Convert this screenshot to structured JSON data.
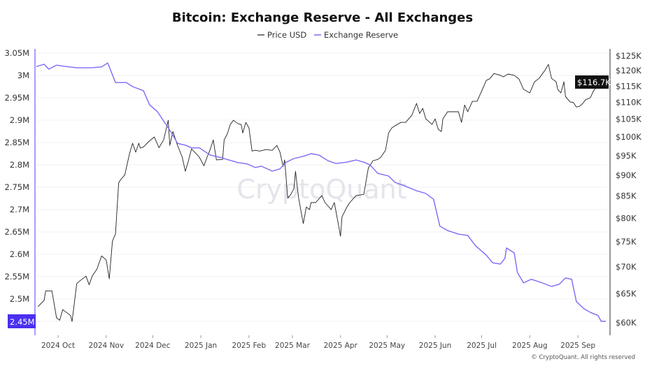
{
  "chart_data": {
    "type": "line",
    "title": "Bitcoin: Exchange Reserve - All Exchanges",
    "watermark": "CryptoQuant",
    "footer": "© CryptoQuant. All rights reserved",
    "x_unit": "days since 2024-09-17",
    "x_start_date": "2024-09-17",
    "x_range": [
      0,
      367
    ],
    "legend_position": "top-center",
    "grid": true,
    "x_ticks": [
      {
        "label": "2024 Oct",
        "date": "2024-10-01"
      },
      {
        "label": "2024 Nov",
        "date": "2024-11-01"
      },
      {
        "label": "2024 Dec",
        "date": "2024-12-01"
      },
      {
        "label": "2025 Jan",
        "date": "2025-01-01"
      },
      {
        "label": "2025 Feb",
        "date": "2025-02-01"
      },
      {
        "label": "2025 Mar",
        "date": "2025-03-01"
      },
      {
        "label": "2025 Apr",
        "date": "2025-04-01"
      },
      {
        "label": "2025 May",
        "date": "2025-05-01"
      },
      {
        "label": "2025 Jun",
        "date": "2025-06-01"
      },
      {
        "label": "2025 Jul",
        "date": "2025-07-01"
      },
      {
        "label": "2025 Aug",
        "date": "2025-08-01"
      },
      {
        "label": "2025 Sep",
        "date": "2025-09-01"
      }
    ],
    "y_left": {
      "label": "Exchange Reserve",
      "range": [
        2.45,
        3.05
      ],
      "unit": "M",
      "ticks": [
        "3.05M",
        "3M",
        "2.95M",
        "2.9M",
        "2.85M",
        "2.8M",
        "2.75M",
        "2.7M",
        "2.65M",
        "2.6M",
        "2.55M",
        "2.5M",
        "2.45M"
      ],
      "tick_values": [
        3.05,
        3.0,
        2.95,
        2.9,
        2.85,
        2.8,
        2.75,
        2.7,
        2.65,
        2.6,
        2.55,
        2.5,
        2.45
      ],
      "current_label": "2.45M"
    },
    "y_right": {
      "label": "Price USD",
      "scale": "log",
      "range": [
        60,
        125
      ],
      "unit": "K USD",
      "ticks": [
        "$125K",
        "$120K",
        "$115K",
        "$110K",
        "$105K",
        "$100K",
        "$95K",
        "$90K",
        "$85K",
        "$80K",
        "$75K",
        "$70K",
        "$65K",
        "$60K"
      ],
      "tick_values": [
        125,
        120,
        115,
        110,
        105,
        100,
        95,
        90,
        85,
        80,
        75,
        70,
        65,
        60
      ],
      "current_label": "$116.7K"
    },
    "series": [
      {
        "name": "Price USD",
        "color": "#222222",
        "axis": "right",
        "points": [
          [
            1,
            62.7
          ],
          [
            5,
            63.8
          ],
          [
            6,
            65.5
          ],
          [
            10,
            65.5
          ],
          [
            13,
            60.8
          ],
          [
            15,
            60.4
          ],
          [
            17,
            62.2
          ],
          [
            20,
            61.6
          ],
          [
            22,
            61.2
          ],
          [
            23,
            60.2
          ],
          [
            26,
            66.8
          ],
          [
            28,
            67.3
          ],
          [
            32,
            68.2
          ],
          [
            34,
            66.6
          ],
          [
            36,
            68.2
          ],
          [
            39,
            69.5
          ],
          [
            42,
            72.1
          ],
          [
            45,
            71.3
          ],
          [
            47,
            67.7
          ],
          [
            49,
            75.1
          ],
          [
            51,
            76.6
          ],
          [
            53,
            88.1
          ],
          [
            54,
            88.8
          ],
          [
            57,
            90.1
          ],
          [
            60,
            95.5
          ],
          [
            62,
            98.3
          ],
          [
            64,
            95.9
          ],
          [
            66,
            98.3
          ],
          [
            67,
            97.0
          ],
          [
            69,
            97.3
          ],
          [
            72,
            98.6
          ],
          [
            76,
            100.0
          ],
          [
            79,
            97.1
          ],
          [
            82,
            99.2
          ],
          [
            85,
            104.7
          ],
          [
            86,
            97.7
          ],
          [
            88,
            101.5
          ],
          [
            91,
            97.7
          ],
          [
            94,
            94.6
          ],
          [
            96,
            91.0
          ],
          [
            98,
            93.7
          ],
          [
            100,
            96.8
          ],
          [
            105,
            94.6
          ],
          [
            108,
            92.4
          ],
          [
            110,
            94.6
          ],
          [
            112,
            96.6
          ],
          [
            114,
            99.2
          ],
          [
            116,
            93.9
          ],
          [
            120,
            94.0
          ],
          [
            121,
            99.2
          ],
          [
            123,
            100.8
          ],
          [
            125,
            103.5
          ],
          [
            127,
            104.7
          ],
          [
            130,
            103.7
          ],
          [
            132,
            103.5
          ],
          [
            133,
            101.1
          ],
          [
            135,
            104.1
          ],
          [
            137,
            102.5
          ],
          [
            139,
            96.2
          ],
          [
            141,
            96.4
          ],
          [
            144,
            96.2
          ],
          [
            148,
            96.6
          ],
          [
            152,
            96.4
          ],
          [
            155,
            97.7
          ],
          [
            157,
            95.9
          ],
          [
            159,
            92.2
          ],
          [
            160,
            93.9
          ],
          [
            162,
            84.5
          ],
          [
            164,
            85.4
          ],
          [
            166,
            86.8
          ],
          [
            167,
            91.0
          ],
          [
            169,
            84.6
          ],
          [
            172,
            78.8
          ],
          [
            174,
            82.5
          ],
          [
            176,
            81.9
          ],
          [
            177,
            83.5
          ],
          [
            180,
            83.5
          ],
          [
            184,
            85.1
          ],
          [
            186,
            83.5
          ],
          [
            188,
            82.7
          ],
          [
            190,
            81.9
          ],
          [
            192,
            83.5
          ],
          [
            195,
            78.0
          ],
          [
            196,
            76.1
          ],
          [
            197,
            80.3
          ],
          [
            200,
            82.4
          ],
          [
            202,
            83.5
          ],
          [
            206,
            85.1
          ],
          [
            211,
            85.4
          ],
          [
            214,
            91.9
          ],
          [
            217,
            93.7
          ],
          [
            220,
            94.0
          ],
          [
            222,
            94.6
          ],
          [
            225,
            96.4
          ],
          [
            227,
            101.1
          ],
          [
            229,
            102.5
          ],
          [
            231,
            103.1
          ],
          [
            235,
            104.1
          ],
          [
            238,
            104.1
          ],
          [
            242,
            106.2
          ],
          [
            245,
            109.7
          ],
          [
            247,
            106.7
          ],
          [
            249,
            108.2
          ],
          [
            251,
            105.1
          ],
          [
            255,
            103.5
          ],
          [
            257,
            105.1
          ],
          [
            259,
            102.1
          ],
          [
            261,
            101.5
          ],
          [
            262,
            105.1
          ],
          [
            265,
            107.2
          ],
          [
            268,
            107.2
          ],
          [
            272,
            107.2
          ],
          [
            274,
            104.1
          ],
          [
            276,
            109.2
          ],
          [
            278,
            107.2
          ],
          [
            281,
            110.3
          ],
          [
            284,
            110.3
          ],
          [
            287,
            113.5
          ],
          [
            290,
            116.9
          ],
          [
            292,
            117.3
          ],
          [
            295,
            119.1
          ],
          [
            299,
            118.5
          ],
          [
            301,
            118.0
          ],
          [
            304,
            118.9
          ],
          [
            308,
            118.5
          ],
          [
            311,
            117.3
          ],
          [
            314,
            114.0
          ],
          [
            318,
            112.9
          ],
          [
            321,
            116.4
          ],
          [
            324,
            117.5
          ],
          [
            328,
            120.3
          ],
          [
            330,
            122.1
          ],
          [
            332,
            117.5
          ],
          [
            335,
            116.4
          ],
          [
            336,
            114.0
          ],
          [
            338,
            112.9
          ],
          [
            340,
            116.4
          ],
          [
            341,
            111.8
          ],
          [
            344,
            110.1
          ],
          [
            346,
            110.0
          ],
          [
            348,
            108.6
          ],
          [
            350,
            108.8
          ],
          [
            352,
            109.6
          ],
          [
            354,
            110.8
          ],
          [
            357,
            111.4
          ],
          [
            359,
            113.5
          ],
          [
            362,
            115.3
          ],
          [
            365,
            115.8
          ],
          [
            367,
            116.7
          ]
        ]
      },
      {
        "name": "Exchange Reserve",
        "color": "#7b6cf6",
        "axis": "left",
        "points": [
          [
            0,
            3.02
          ],
          [
            5,
            3.025
          ],
          [
            8,
            3.014
          ],
          [
            13,
            3.023
          ],
          [
            19,
            3.02
          ],
          [
            26,
            3.017
          ],
          [
            35,
            3.017
          ],
          [
            42,
            3.019
          ],
          [
            46,
            3.028
          ],
          [
            51,
            2.984
          ],
          [
            58,
            2.984
          ],
          [
            62,
            2.975
          ],
          [
            69,
            2.966
          ],
          [
            73,
            2.934
          ],
          [
            78,
            2.919
          ],
          [
            82,
            2.898
          ],
          [
            87,
            2.872
          ],
          [
            91,
            2.848
          ],
          [
            96,
            2.844
          ],
          [
            100,
            2.838
          ],
          [
            105,
            2.838
          ],
          [
            112,
            2.822
          ],
          [
            118,
            2.817
          ],
          [
            123,
            2.812
          ],
          [
            130,
            2.805
          ],
          [
            136,
            2.802
          ],
          [
            141,
            2.794
          ],
          [
            145,
            2.797
          ],
          [
            152,
            2.786
          ],
          [
            157,
            2.791
          ],
          [
            161,
            2.806
          ],
          [
            166,
            2.814
          ],
          [
            173,
            2.82
          ],
          [
            177,
            2.825
          ],
          [
            182,
            2.822
          ],
          [
            188,
            2.809
          ],
          [
            193,
            2.803
          ],
          [
            200,
            2.806
          ],
          [
            206,
            2.811
          ],
          [
            211,
            2.806
          ],
          [
            215,
            2.8
          ],
          [
            220,
            2.781
          ],
          [
            227,
            2.775
          ],
          [
            231,
            2.761
          ],
          [
            238,
            2.752
          ],
          [
            245,
            2.742
          ],
          [
            251,
            2.736
          ],
          [
            256,
            2.723
          ],
          [
            260,
            2.663
          ],
          [
            265,
            2.653
          ],
          [
            272,
            2.645
          ],
          [
            278,
            2.642
          ],
          [
            283,
            2.619
          ],
          [
            290,
            2.598
          ],
          [
            294,
            2.581
          ],
          [
            299,
            2.578
          ],
          [
            302,
            2.591
          ],
          [
            303,
            2.614
          ],
          [
            308,
            2.603
          ],
          [
            310,
            2.559
          ],
          [
            314,
            2.536
          ],
          [
            319,
            2.544
          ],
          [
            326,
            2.536
          ],
          [
            332,
            2.528
          ],
          [
            337,
            2.533
          ],
          [
            341,
            2.547
          ],
          [
            345,
            2.544
          ],
          [
            348,
            2.494
          ],
          [
            353,
            2.478
          ],
          [
            357,
            2.47
          ],
          [
            362,
            2.463
          ],
          [
            364,
            2.45
          ],
          [
            367,
            2.45
          ]
        ]
      }
    ]
  }
}
